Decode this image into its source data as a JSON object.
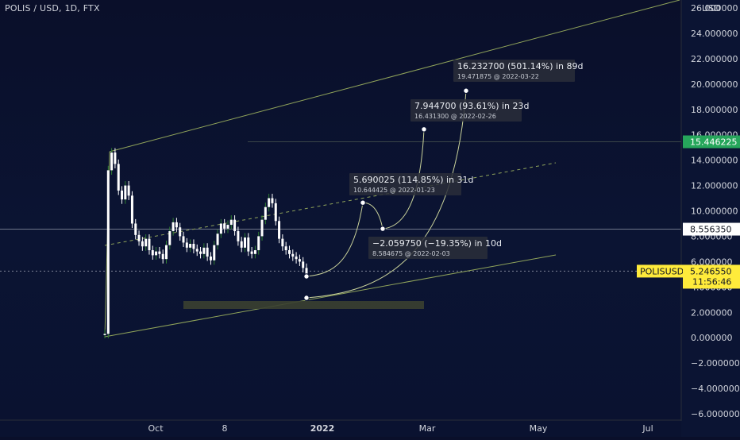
{
  "header": {
    "symbol_title": "POLIS / USD, 1D, FTX",
    "currency": "USD"
  },
  "colors": {
    "background": "#0b1433",
    "axis_text": "#d1d4dc",
    "candle": "#ffffff",
    "candle_up_wick": "#2e7d32",
    "channel_line": "#8fa35a",
    "annotation_bg": "#2a2e39",
    "current_price_bg": "#ffeb3b",
    "level_15_bg": "#26a65b",
    "level_8_bg": "#ffffff",
    "zone": "#3a4030"
  },
  "chart_data": {
    "type": "candlestick",
    "y_axis": {
      "min": -6,
      "max": 26,
      "ticks": [
        "26.000000",
        "24.000000",
        "22.000000",
        "20.000000",
        "18.000000",
        "16.000000",
        "14.000000",
        "12.000000",
        "10.000000",
        "8.000000",
        "6.000000",
        "4.000000",
        "2.000000",
        "0.000000",
        "−2.000000",
        "−4.000000",
        "−6.000000"
      ]
    },
    "x_axis": {
      "ticks": [
        "Oct",
        "8",
        "2022",
        "Mar",
        "May",
        "Jul"
      ]
    },
    "price_series_close": [
      0.3,
      13.2,
      14.6,
      13.7,
      11.6,
      10.9,
      12.0,
      11.2,
      9.0,
      8.1,
      7.6,
      7.2,
      7.8,
      6.9,
      6.5,
      6.8,
      6.6,
      6.2,
      7.3,
      8.4,
      9.1,
      8.7,
      8.0,
      7.5,
      7.1,
      7.4,
      7.0,
      6.8,
      6.6,
      7.1,
      6.4,
      6.1,
      7.3,
      8.2,
      9.0,
      8.6,
      8.9,
      9.3,
      8.4,
      7.6,
      7.1,
      7.9,
      6.8,
      6.6,
      6.9,
      8.0,
      9.3,
      10.3,
      11.0,
      10.6,
      9.2,
      7.8,
      7.2,
      6.9,
      6.6,
      6.4,
      6.2,
      6.0,
      5.5,
      5.0
    ],
    "annotations": [
      {
        "main": "16.232700 (501.14%) in 89d",
        "sub": "19.471875 @ 2022-03-22"
      },
      {
        "main": "7.944700 (93.61%) in 23d",
        "sub": "16.431300 @ 2022-02-26"
      },
      {
        "main": "5.690025 (114.85%) in 31d",
        "sub": "10.644425 @ 2022-01-23"
      },
      {
        "main": "−2.059750 (−19.35%) in 10d",
        "sub": "8.584675 @ 2022-02-03"
      }
    ],
    "price_labels": {
      "level_high": "15.446225",
      "level_mid": "8.556350",
      "current_name": "POLISUSD",
      "current_value": "5.246550",
      "countdown": "11:56:46"
    },
    "levels": {
      "high": 15.446225,
      "mid": 8.55635,
      "current": 5.24655
    },
    "projection_points": [
      {
        "value": 10.644425,
        "date": "2022-01-23"
      },
      {
        "value": 8.584675,
        "date": "2022-02-03"
      },
      {
        "value": 16.4313,
        "date": "2022-02-26"
      },
      {
        "value": 19.471875,
        "date": "2022-03-22"
      }
    ]
  }
}
